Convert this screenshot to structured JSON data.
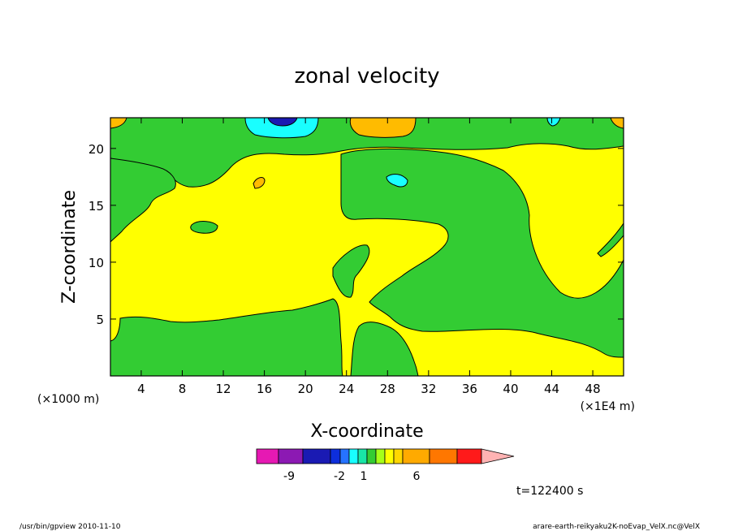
{
  "chart_data": {
    "type": "heatmap",
    "title": "zonal velocity",
    "xlabel": "X-coordinate",
    "ylabel": "Z-coordinate",
    "x_unit_left": "(×1000 m)",
    "x_unit_right": "(×1E4 m)",
    "xlim": [
      1,
      51
    ],
    "ylim": [
      0,
      22.7
    ],
    "x_ticks": [
      4,
      8,
      12,
      16,
      20,
      24,
      28,
      32,
      36,
      40,
      44,
      48
    ],
    "y_ticks": [
      5,
      10,
      15,
      20
    ],
    "colorbar": {
      "colors": [
        "#e619b3",
        "#8c19b3",
        "#1a1ab3",
        "#0d2edb",
        "#2673ff",
        "#19ffff",
        "#19e6a6",
        "#33cc33",
        "#a6ff19",
        "#ffff00",
        "#ffd700",
        "#ffaa00",
        "#ff7700",
        "#ff1a1a",
        "#ff7373",
        "#ffb3b3"
      ],
      "tick_labels": [
        "-9",
        "-2",
        "1",
        "6"
      ]
    },
    "regions": {
      "background": "#ffff00",
      "green": "#33cc33",
      "cyan": "#19ffff",
      "blue": "#1a1ab3",
      "orange": "#ffbb00"
    }
  },
  "time_label": "t=122400 s",
  "footer": {
    "left": "/usr/bin/gpview   2010-11-10",
    "right": "arare-earth-reikyaku2K-noEvap_VelX.nc@VelX"
  }
}
